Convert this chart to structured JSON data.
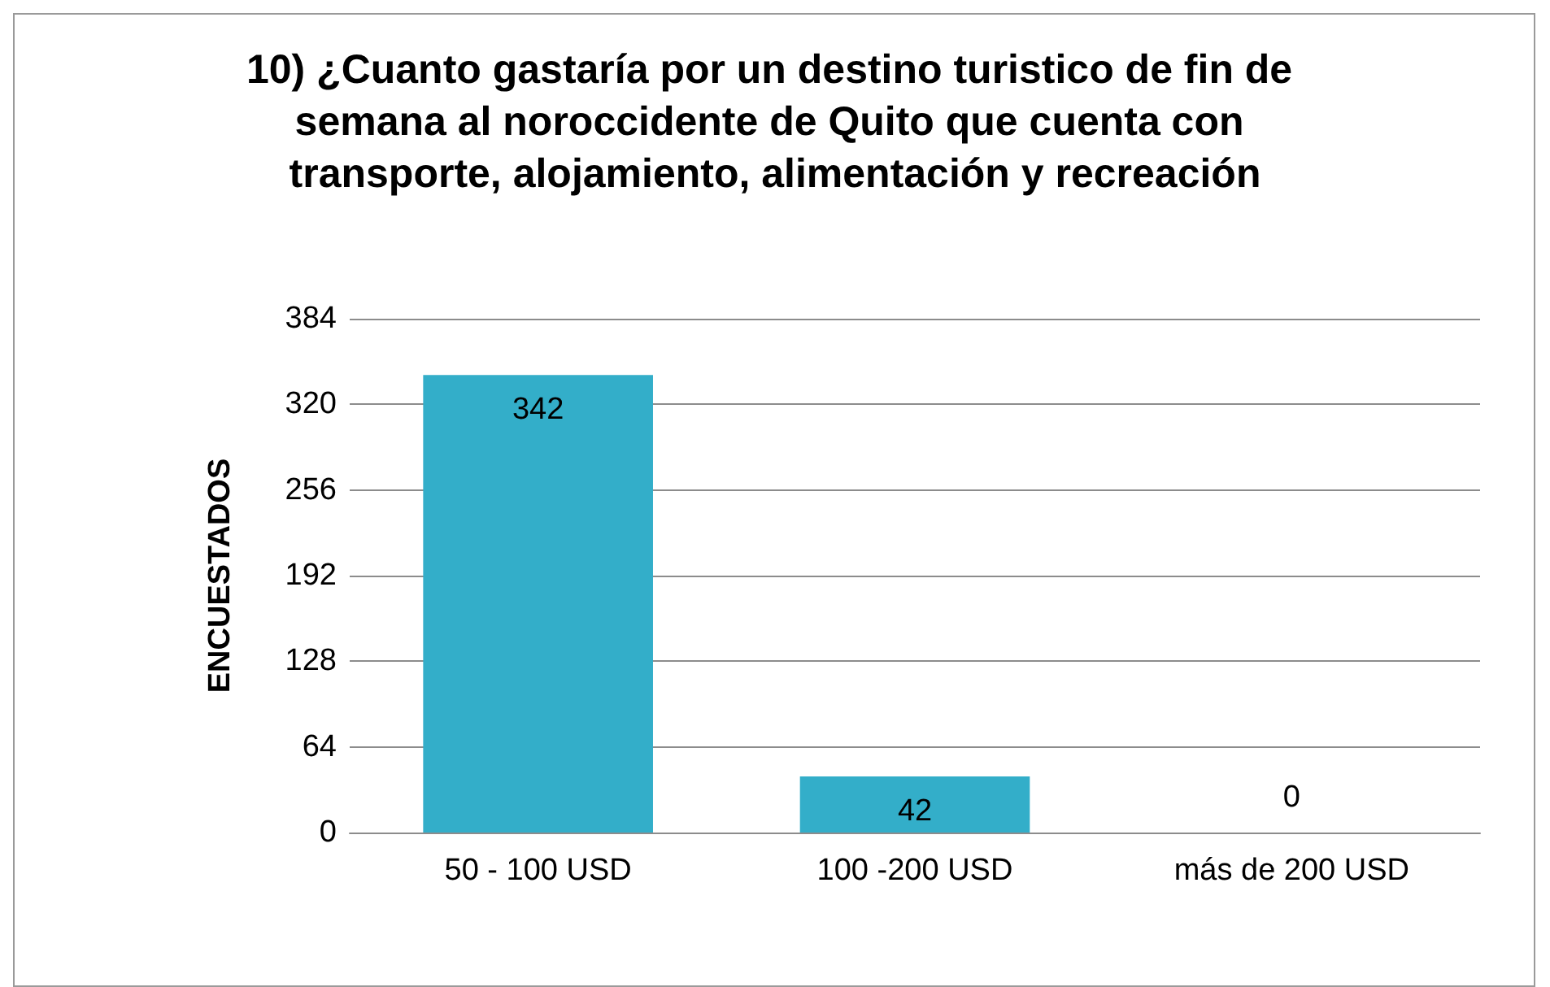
{
  "chart_data": {
    "type": "bar",
    "title": "10) ¿Cuanto gastaría por un destino turistico de fin de semana al noroccidente de Quito que cuenta con transporte, alojamiento, alimentación y recreación",
    "ylabel": "ENCUESTADOS",
    "categories": [
      "50 - 100 USD",
      "100 -200 USD",
      "más de 200 USD"
    ],
    "values": [
      342,
      42,
      0
    ],
    "color": "#33aec9",
    "ylim": [
      0,
      384
    ],
    "yticks": [
      0,
      64,
      128,
      192,
      256,
      320,
      384
    ],
    "grid": "y",
    "data_labels": true
  }
}
